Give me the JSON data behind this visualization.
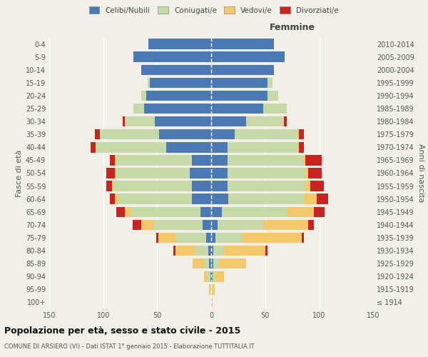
{
  "age_groups": [
    "100+",
    "95-99",
    "90-94",
    "85-89",
    "80-84",
    "75-79",
    "70-74",
    "65-69",
    "60-64",
    "55-59",
    "50-54",
    "45-49",
    "40-44",
    "35-39",
    "30-34",
    "25-29",
    "20-24",
    "15-19",
    "10-14",
    "5-9",
    "0-4"
  ],
  "birth_years": [
    "≤ 1914",
    "1915-1919",
    "1920-1924",
    "1925-1929",
    "1930-1934",
    "1935-1939",
    "1940-1944",
    "1945-1949",
    "1950-1954",
    "1955-1959",
    "1960-1964",
    "1965-1969",
    "1970-1974",
    "1975-1979",
    "1980-1984",
    "1985-1989",
    "1990-1994",
    "1995-1999",
    "2000-2004",
    "2005-2009",
    "2010-2014"
  ],
  "male_celibi": [
    0,
    0,
    1,
    2,
    3,
    5,
    8,
    10,
    18,
    18,
    20,
    18,
    42,
    48,
    52,
    62,
    60,
    57,
    65,
    72,
    58
  ],
  "male_coniugati": [
    0,
    1,
    3,
    5,
    12,
    28,
    45,
    65,
    68,
    72,
    68,
    70,
    65,
    55,
    28,
    10,
    5,
    2,
    0,
    0,
    0
  ],
  "male_vedovi": [
    0,
    1,
    3,
    10,
    18,
    16,
    12,
    5,
    3,
    2,
    1,
    1,
    0,
    0,
    0,
    0,
    0,
    0,
    0,
    0,
    0
  ],
  "male_divorziati": [
    0,
    0,
    0,
    0,
    2,
    2,
    8,
    8,
    5,
    5,
    8,
    5,
    5,
    5,
    2,
    0,
    0,
    0,
    0,
    0,
    0
  ],
  "female_celibi": [
    0,
    0,
    1,
    2,
    2,
    4,
    6,
    10,
    16,
    15,
    15,
    15,
    15,
    22,
    32,
    48,
    52,
    52,
    58,
    68,
    58
  ],
  "female_coniugati": [
    0,
    1,
    3,
    5,
    10,
    25,
    42,
    60,
    70,
    72,
    72,
    70,
    65,
    58,
    35,
    22,
    10,
    5,
    0,
    0,
    0
  ],
  "female_vedovi": [
    1,
    2,
    8,
    25,
    38,
    55,
    42,
    25,
    12,
    5,
    3,
    2,
    1,
    1,
    0,
    0,
    0,
    0,
    0,
    0,
    0
  ],
  "female_divorziati": [
    0,
    0,
    0,
    0,
    2,
    2,
    5,
    10,
    10,
    12,
    12,
    15,
    5,
    5,
    3,
    0,
    0,
    0,
    0,
    0,
    0
  ],
  "color_celibi": "#4a7ab5",
  "color_coniugati": "#c8d9a8",
  "color_vedovi": "#f5c86a",
  "color_divorziati": "#cc2222",
  "xlim": 150,
  "title": "Popolazione per età, sesso e stato civile - 2015",
  "subtitle": "COMUNE DI ARSIERO (VI) - Dati ISTAT 1° gennaio 2015 - Elaborazione TUTTITALIA.IT",
  "ylabel_left": "Fasce di età",
  "ylabel_right": "Anni di nascita",
  "label_femmine": "Femmine",
  "legend_labels": [
    "Celibi/Nubili",
    "Coniugati/e",
    "Vedovi/e",
    "Divorziati/e"
  ],
  "bg_color": "#f0f0e8",
  "bar_height": 0.8
}
